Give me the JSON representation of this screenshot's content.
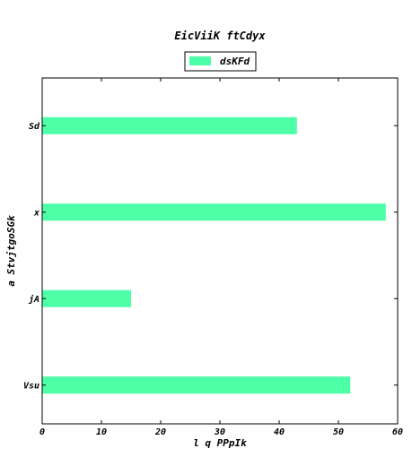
{
  "chart_data": {
    "type": "bar",
    "orientation": "horizontal",
    "title": "EicViiK ftCdyx",
    "xlabel": "l q PPpIk",
    "ylabel": "a StvjtgoSGk",
    "categories": [
      "Vsu",
      "jA",
      "x",
      "Sd"
    ],
    "series": [
      {
        "name": "dsKFd",
        "values": [
          52,
          15,
          58,
          43
        ],
        "color": "#4dffa6"
      }
    ],
    "xlim": [
      0,
      60
    ],
    "xticks": [
      0,
      10,
      20,
      30,
      40,
      50,
      60
    ],
    "grid": false,
    "legend_position": "top-center"
  }
}
